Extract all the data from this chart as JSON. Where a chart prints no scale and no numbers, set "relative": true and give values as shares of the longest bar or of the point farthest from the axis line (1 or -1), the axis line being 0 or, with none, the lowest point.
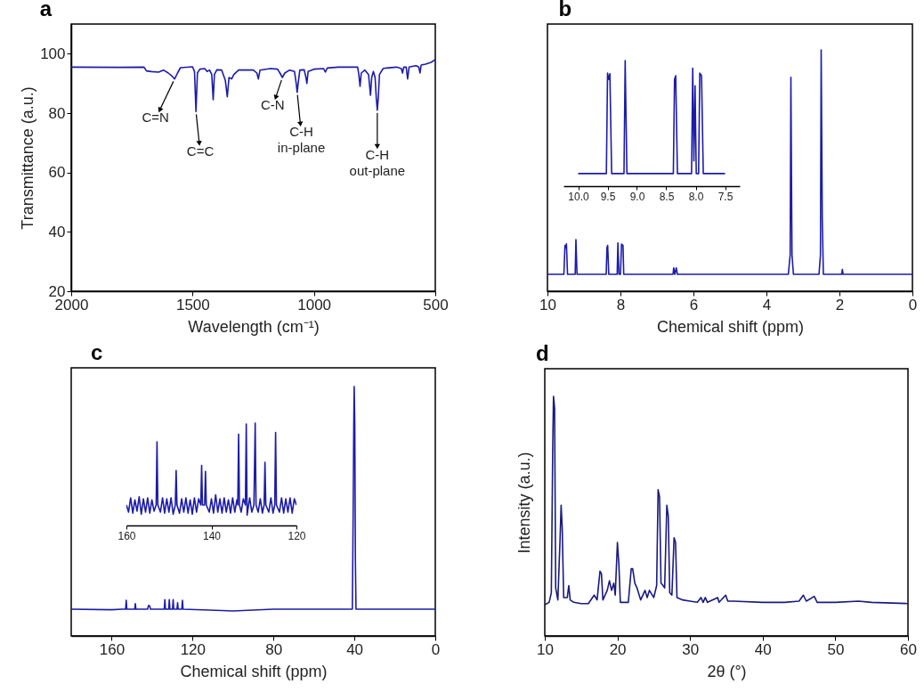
{
  "chart_data": [
    {
      "type": "line",
      "title": "a",
      "xlabel": "Wavelength (cm⁻¹)",
      "ylabel": "Transmittance (a.u.)",
      "color": "#1c1caa",
      "xlim": [
        2000,
        500
      ],
      "xticks": [
        2000,
        1500,
        1000,
        500
      ],
      "ylim": [
        20,
        110
      ],
      "yticks": [
        20,
        40,
        60,
        80,
        100
      ],
      "x": [
        2000,
        1800,
        1700,
        1690,
        1670,
        1640,
        1620,
        1600,
        1585,
        1574,
        1562,
        1550,
        1500,
        1492,
        1486,
        1480,
        1470,
        1450,
        1440,
        1430,
        1421,
        1415,
        1410,
        1400,
        1380,
        1365,
        1357,
        1350,
        1339,
        1330,
        1310,
        1250,
        1235,
        1229,
        1222,
        1180,
        1150,
        1140,
        1130,
        1120,
        1100,
        1080,
        1073,
        1069,
        1065,
        1058,
        1040,
        1033,
        1029,
        1024,
        1000,
        960,
        953,
        945,
        900,
        820,
        815,
        810,
        805,
        790,
        775,
        767,
        762,
        755,
        748,
        743,
        739,
        735,
        730,
        715,
        700,
        660,
        640,
        635,
        630,
        620,
        614,
        608,
        580,
        568,
        563,
        558,
        540,
        520,
        500
      ],
      "values": [
        95.5,
        95.4,
        95.5,
        94.2,
        94,
        93.8,
        94.5,
        93.5,
        92.5,
        91.5,
        93.5,
        95.3,
        95.6,
        94,
        80.5,
        93.5,
        94.8,
        95,
        94,
        94.5,
        93,
        84.5,
        93,
        94.6,
        94.5,
        91,
        85.5,
        92,
        91.5,
        93,
        94.5,
        94.5,
        93.5,
        91.5,
        94.5,
        95,
        94.8,
        93.5,
        92,
        93.5,
        94.5,
        94,
        90,
        87,
        90,
        94.5,
        94.6,
        92,
        90,
        94,
        94.8,
        95,
        93.8,
        95.2,
        95.5,
        95.5,
        93,
        89,
        93.5,
        94.5,
        93,
        86,
        92,
        94,
        92,
        85,
        81,
        85,
        93,
        95,
        95.2,
        95.5,
        95,
        93.5,
        95.5,
        95.5,
        91.5,
        95.5,
        96,
        95.5,
        93.5,
        96.2,
        96.5,
        97,
        98
      ],
      "annotations": [
        {
          "text": "C=N",
          "x": 1574,
          "y": 91.5
        },
        {
          "text": "C=C",
          "x": 1486,
          "y": 80.5
        },
        {
          "text": "C-N",
          "x": 1130,
          "y": 92
        },
        {
          "text": "C-H\nin-plane",
          "x": 1069,
          "y": 87
        },
        {
          "text": "C-H\nout-plane",
          "x": 739,
          "y": 81
        }
      ]
    },
    {
      "type": "line",
      "title": "b",
      "xlabel": "Chemical shift (ppm)",
      "color": "#1c1caa",
      "relative": true,
      "xlim": [
        10,
        0
      ],
      "xticks": [
        10,
        8,
        6,
        4,
        2,
        0
      ],
      "x": [
        10,
        9.55,
        9.52,
        9.5,
        9.48,
        9.45,
        9.24,
        9.22,
        9.19,
        8.39,
        8.37,
        8.35,
        8.32,
        8.09,
        8.07,
        8.04,
        8,
        7.97,
        7.93,
        7.91,
        6.56,
        6.54,
        6.51,
        6.47,
        6.44,
        3.4,
        3.35,
        3.33,
        3.3,
        3.26,
        2.56,
        2.52,
        2.5,
        2.47,
        2.44,
        1.94,
        1.92,
        1.9,
        0
      ],
      "values": [
        0.07,
        0.07,
        0.19,
        0.18,
        0.196,
        0.07,
        0.07,
        0.214,
        0.07,
        0.07,
        0.18,
        0.19,
        0.07,
        0.07,
        0.2,
        0.07,
        0.07,
        0.195,
        0.19,
        0.07,
        0.07,
        0.097,
        0.07,
        0.097,
        0.07,
        0.07,
        0.15,
        0.886,
        0.15,
        0.07,
        0.07,
        0.15,
        1,
        0.3,
        0.07,
        0.07,
        0.09,
        0.07,
        0.07
      ]
    },
    {
      "type": "line",
      "color": "#1c1caa",
      "relative": true,
      "xlim": [
        10.25,
        7.25
      ],
      "xticks": [
        {
          "value": 10,
          "label": "10.0"
        },
        9.5,
        {
          "value": 9,
          "label": "9.0"
        },
        8.5,
        {
          "value": 8,
          "label": "8.0"
        },
        7.5
      ],
      "x": [
        10,
        9.52,
        9.5,
        9.48,
        9.46,
        9.43,
        9.22,
        9.2,
        9.17,
        9,
        8.38,
        8.36,
        8.34,
        8.31,
        8.07,
        8.05,
        8.03,
        8.01,
        7.99,
        7.95,
        7.93,
        7.9,
        7.87,
        7.5
      ],
      "values": [
        0.1,
        0.1,
        0.9,
        0.85,
        0.895,
        0.1,
        0.1,
        1,
        0.1,
        0.1,
        0.1,
        0.85,
        0.88,
        0.1,
        0.1,
        0.94,
        0.2,
        0.8,
        0.1,
        0.1,
        0.9,
        0.88,
        0.1,
        0.1
      ]
    },
    {
      "type": "line",
      "title": "c",
      "xlabel": "Chemical shift (ppm)",
      "color": "#1c1caa",
      "relative": true,
      "xlim": [
        180,
        0
      ],
      "xticks": [
        160,
        120,
        80,
        40,
        0
      ],
      "x": [
        180,
        160,
        155,
        153.1,
        152.8,
        152.5,
        148.6,
        148.3,
        148,
        142.2,
        141.8,
        141.2,
        140.8,
        134,
        133.7,
        133.4,
        131.8,
        131.5,
        131.2,
        129.9,
        129.6,
        129.3,
        127.7,
        127.4,
        127.1,
        125.3,
        125,
        124.7,
        100,
        80,
        41,
        40.6,
        40.3,
        40.1,
        39.8,
        39.5,
        39.2,
        20,
        0
      ],
      "values": [
        0.107,
        0.105,
        0.107,
        0.107,
        0.143,
        0.107,
        0.107,
        0.129,
        0.107,
        0.107,
        0.122,
        0.12,
        0.107,
        0.107,
        0.145,
        0.107,
        0.107,
        0.145,
        0.107,
        0.107,
        0.145,
        0.107,
        0.107,
        0.133,
        0.107,
        0.107,
        0.143,
        0.107,
        0.1,
        0.107,
        0.107,
        0.5,
        0.85,
        1,
        0.85,
        0.3,
        0.107,
        0.107,
        0.107
      ]
    },
    {
      "type": "line",
      "color": "#1c1caa",
      "relative": true,
      "xlim": [
        160,
        120
      ],
      "xticks": [
        160,
        140,
        120
      ],
      "x": [
        160,
        159.5,
        159,
        158.5,
        158,
        157.5,
        157,
        156.5,
        156,
        155.5,
        155,
        154.5,
        154,
        153.5,
        153,
        152.8,
        152.6,
        152,
        151.5,
        151,
        150.5,
        150,
        149.5,
        149,
        148.5,
        148.3,
        148.1,
        147.5,
        147,
        146.5,
        146,
        145.5,
        145,
        144.5,
        144,
        143.5,
        143,
        142.5,
        142.3,
        142.1,
        141.6,
        141.4,
        141.2,
        140.5,
        140,
        139.5,
        139,
        138.5,
        138,
        137.5,
        137,
        136.5,
        136,
        135.5,
        135,
        134.5,
        134,
        133.8,
        133.6,
        133.4,
        133,
        132.5,
        132,
        131.8,
        131.6,
        131,
        130.5,
        130,
        129.7,
        129.5,
        129,
        128.5,
        128,
        127.6,
        127.4,
        127.2,
        126.5,
        126,
        125.5,
        125.1,
        124.9,
        124.7,
        124,
        123.5,
        123,
        122.5,
        122,
        121.5,
        121,
        120.5,
        120
      ],
      "values": [
        0.2,
        0.13,
        0.27,
        0.12,
        0.25,
        0.14,
        0.28,
        0.11,
        0.26,
        0.13,
        0.27,
        0.12,
        0.25,
        0.14,
        0.2,
        0.817,
        0.2,
        0.13,
        0.27,
        0.12,
        0.26,
        0.13,
        0.27,
        0.11,
        0.2,
        0.536,
        0.2,
        0.12,
        0.26,
        0.13,
        0.27,
        0.12,
        0.25,
        0.11,
        0.27,
        0.13,
        0.26,
        0.2,
        0.586,
        0.2,
        0.2,
        0.528,
        0.2,
        0.13,
        0.26,
        0.12,
        0.3,
        0.13,
        0.26,
        0.12,
        0.27,
        0.13,
        0.25,
        0.12,
        0.27,
        0.13,
        0.25,
        0.2,
        0.89,
        0.2,
        0.13,
        0.26,
        0.2,
        0.991,
        0.1,
        0.27,
        0.13,
        0.2,
        1,
        0.2,
        0.13,
        0.26,
        0.12,
        0.2,
        0.617,
        0.2,
        0.13,
        0.27,
        0.12,
        0.2,
        0.907,
        0.2,
        0.13,
        0.27,
        0.12,
        0.26,
        0.13,
        0.27,
        0.12,
        0.26,
        0.2
      ]
    },
    {
      "type": "line",
      "title": "d",
      "xlabel": "2θ (°)",
      "ylabel": "Intensity (a.u.)",
      "color": "#1a1a80",
      "relative": true,
      "xlim": [
        10,
        60
      ],
      "xticks": [
        10,
        20,
        30,
        40,
        50,
        60
      ],
      "x": [
        10,
        10.6,
        10.9,
        11.1,
        11.2,
        11.35,
        11.5,
        11.8,
        12.1,
        12.25,
        12.4,
        12.6,
        13.1,
        13.3,
        13.5,
        14,
        15,
        16,
        16.8,
        17.2,
        17.6,
        17.8,
        18,
        18.6,
        18.9,
        19.2,
        19.5,
        19.7,
        20,
        20.2,
        20.4,
        21.5,
        21.9,
        22.1,
        22.4,
        22.7,
        23.2,
        23.8,
        24.1,
        24.4,
        25,
        25.4,
        25.6,
        25.8,
        26,
        26.3,
        26.5,
        26.8,
        27,
        27.2,
        27.5,
        27.8,
        28,
        28.2,
        29,
        30,
        31,
        31.5,
        31.8,
        32.1,
        32.4,
        33.8,
        34,
        34.9,
        35.2,
        36,
        40,
        43,
        45,
        45.6,
        46,
        47.1,
        47.5,
        50,
        53.2,
        55,
        60
      ],
      "values": [
        0.13,
        0.14,
        0.18,
        0.8,
        1,
        0.95,
        0.2,
        0.15,
        0.4,
        0.545,
        0.45,
        0.16,
        0.16,
        0.21,
        0.15,
        0.14,
        0.135,
        0.135,
        0.17,
        0.15,
        0.27,
        0.26,
        0.15,
        0.19,
        0.23,
        0.19,
        0.22,
        0.17,
        0.39,
        0.3,
        0.14,
        0.14,
        0.28,
        0.28,
        0.22,
        0.2,
        0.15,
        0.19,
        0.16,
        0.19,
        0.16,
        0.21,
        0.61,
        0.58,
        0.22,
        0.21,
        0.2,
        0.545,
        0.5,
        0.18,
        0.17,
        0.41,
        0.39,
        0.16,
        0.15,
        0.145,
        0.14,
        0.16,
        0.14,
        0.16,
        0.14,
        0.16,
        0.14,
        0.17,
        0.145,
        0.145,
        0.14,
        0.14,
        0.145,
        0.17,
        0.145,
        0.165,
        0.14,
        0.14,
        0.145,
        0.14,
        0.135
      ]
    }
  ]
}
